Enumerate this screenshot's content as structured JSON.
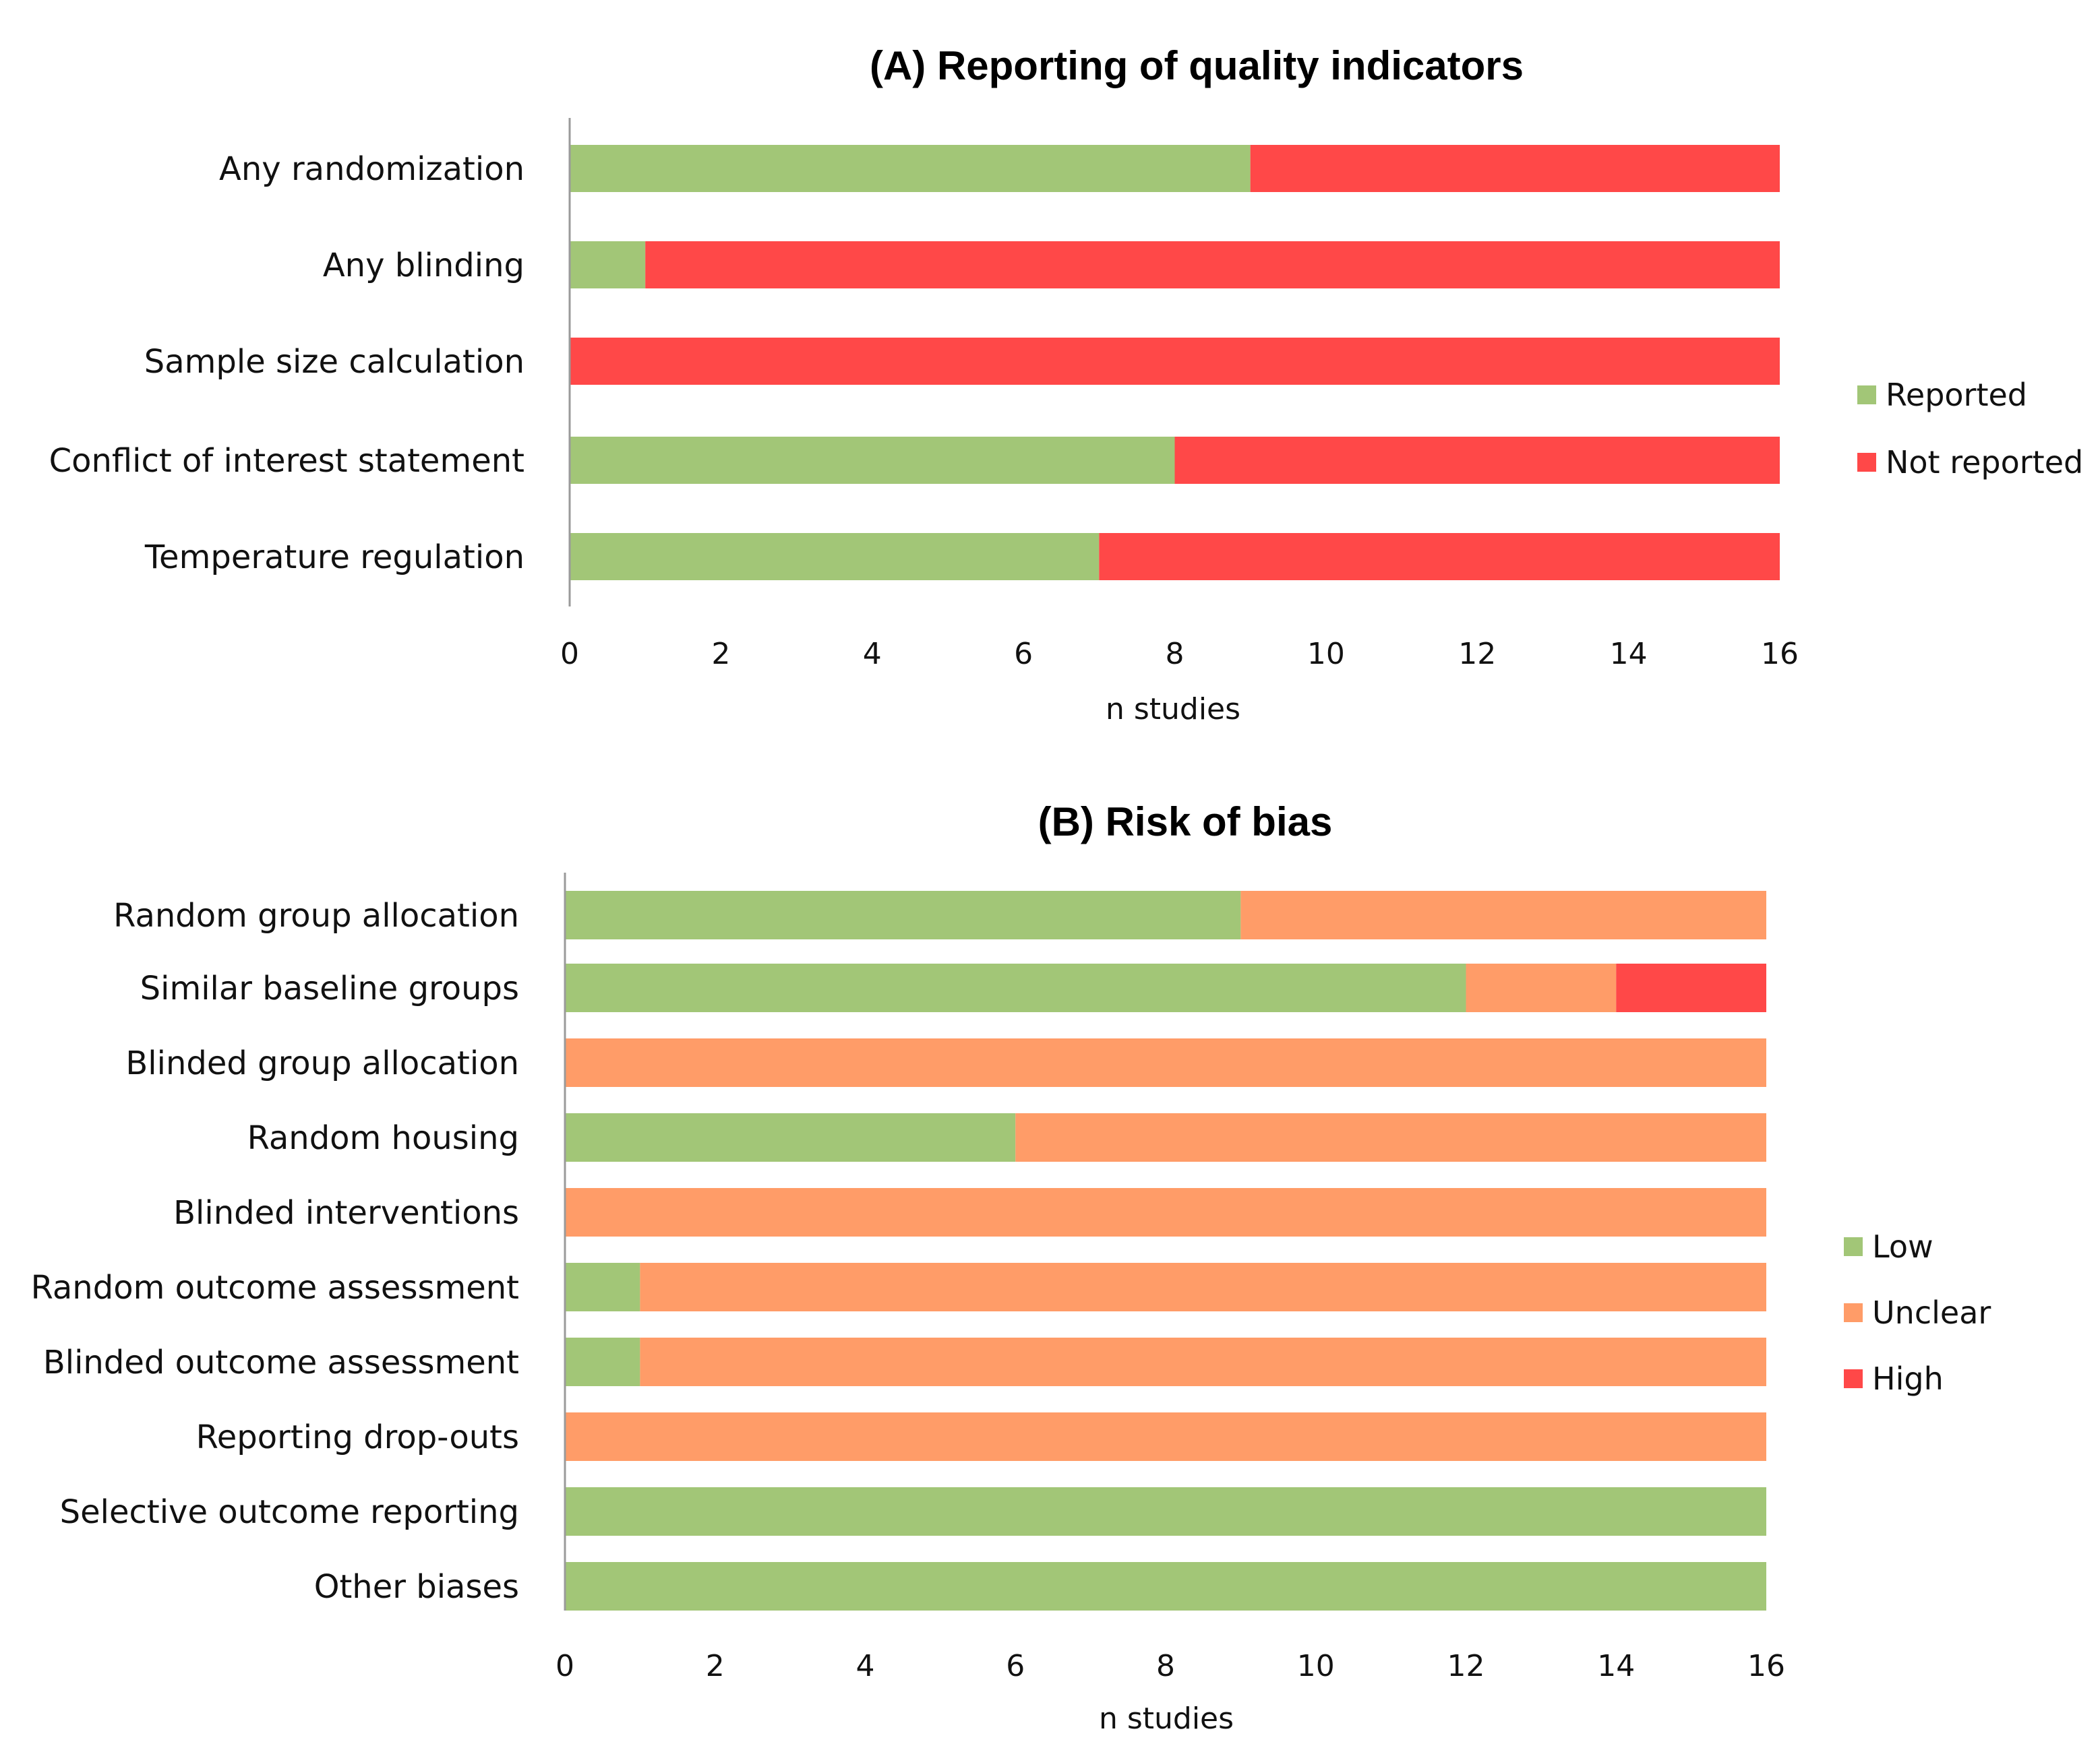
{
  "chart_data": [
    {
      "type": "bar",
      "orientation": "horizontal",
      "stacked": true,
      "title": "(A) Reporting of quality indicators",
      "xlabel": "n studies",
      "ylabel": "",
      "xlim": [
        0,
        16
      ],
      "xticks": [
        0,
        2,
        4,
        6,
        8,
        10,
        12,
        14,
        16
      ],
      "grid": false,
      "legend_position": "right",
      "categories": [
        "Any randomization",
        "Any blinding",
        "Sample size calculation",
        "Conflict of interest statement",
        "Temperature regulation"
      ],
      "series": [
        {
          "name": "Reported",
          "color": "#a2c677",
          "values": [
            9,
            1,
            0,
            8,
            7
          ]
        },
        {
          "name": "Not reported",
          "color": "#ff4848",
          "values": [
            7,
            15,
            16,
            8,
            9
          ]
        }
      ]
    },
    {
      "type": "bar",
      "orientation": "horizontal",
      "stacked": true,
      "title": "(B) Risk of bias",
      "xlabel": "n studies",
      "ylabel": "",
      "xlim": [
        0,
        16
      ],
      "xticks": [
        0,
        2,
        4,
        6,
        8,
        10,
        12,
        14,
        16
      ],
      "grid": false,
      "legend_position": "right",
      "categories": [
        "Random group allocation",
        "Similar baseline groups",
        "Blinded group allocation",
        "Random housing",
        "Blinded interventions",
        "Random outcome assessment",
        "Blinded outcome assessment",
        "Reporting drop-outs",
        "Selective outcome reporting",
        "Other biases"
      ],
      "series": [
        {
          "name": "Low",
          "color": "#a2c677",
          "values": [
            9,
            12,
            0,
            6,
            0,
            1,
            1,
            0,
            16,
            16
          ]
        },
        {
          "name": "Unclear",
          "color": "#ff9c68",
          "values": [
            7,
            2,
            16,
            10,
            16,
            15,
            15,
            16,
            0,
            0
          ]
        },
        {
          "name": "High",
          "color": "#ff4848",
          "values": [
            0,
            2,
            0,
            0,
            0,
            0,
            0,
            0,
            0,
            0
          ]
        }
      ]
    }
  ]
}
